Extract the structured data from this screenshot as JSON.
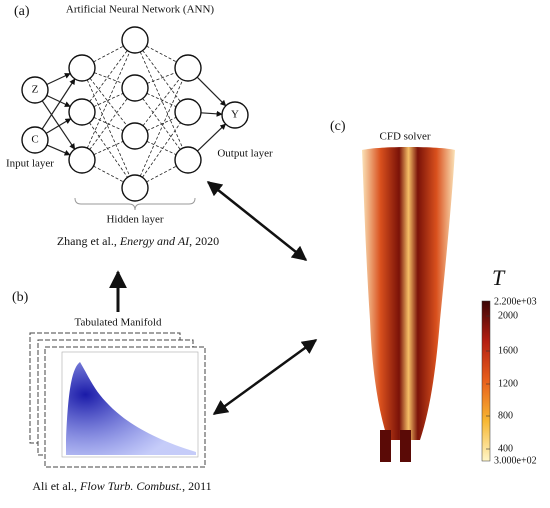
{
  "panel_a": {
    "label": "(a)",
    "title": "Artificial Neural Network (ANN)",
    "inputs": [
      "Z",
      "C"
    ],
    "output": "Y",
    "input_layer": "Input layer",
    "output_layer": "Output layer",
    "hidden_layer": "Hidden layer",
    "citation": {
      "authors": "Zhang et al.,",
      "journal": "Energy and AI",
      "year": ", 2020"
    }
  },
  "panel_b": {
    "label": "(b)",
    "title": "Tabulated Manifold",
    "citation": {
      "authors": "Ali et al.,",
      "journal": "Flow Turb. Combust.",
      "year": ", 2011"
    }
  },
  "panel_c": {
    "label": "(c)",
    "title": "CFD solver",
    "colorbar": {
      "symbol": "T",
      "max_label": "2.200e+03",
      "ticks": [
        "2000",
        "1600",
        "1200",
        "800",
        "400"
      ],
      "min_label": "3.000e+02"
    }
  }
}
